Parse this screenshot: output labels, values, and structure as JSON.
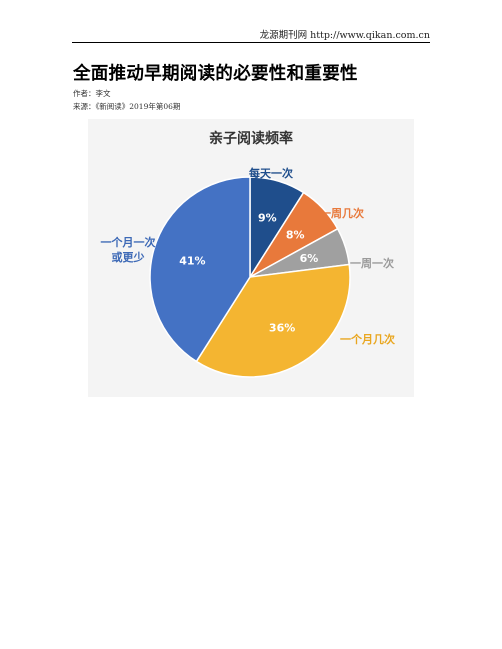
{
  "header": {
    "source": "龙源期刊网 http://www.qikan.com.cn"
  },
  "article": {
    "title": "全面推动早期阅读的必要性和重要性",
    "author_line": "作者：李文",
    "source_line": "来源：《新阅读》2019年第06期"
  },
  "chart_data": {
    "type": "pie",
    "title": "亲子阅读频率",
    "slices": [
      {
        "label": "每天一次",
        "value": 9,
        "value_label": "9%",
        "color": "#1f4e8c"
      },
      {
        "label": "一周几次",
        "value": 8,
        "value_label": "8%",
        "color": "#e8793b"
      },
      {
        "label": "一周一次",
        "value": 6,
        "value_label": "6%",
        "color": "#a0a0a0"
      },
      {
        "label": "一个月几次",
        "value": 36,
        "value_label": "36%",
        "color": "#f4b531"
      },
      {
        "label": "一个月一次或更少",
        "label_line1": "一个月一次",
        "label_line2": "或更少",
        "value": 41,
        "value_label": "41%",
        "color": "#4472c4"
      }
    ]
  }
}
